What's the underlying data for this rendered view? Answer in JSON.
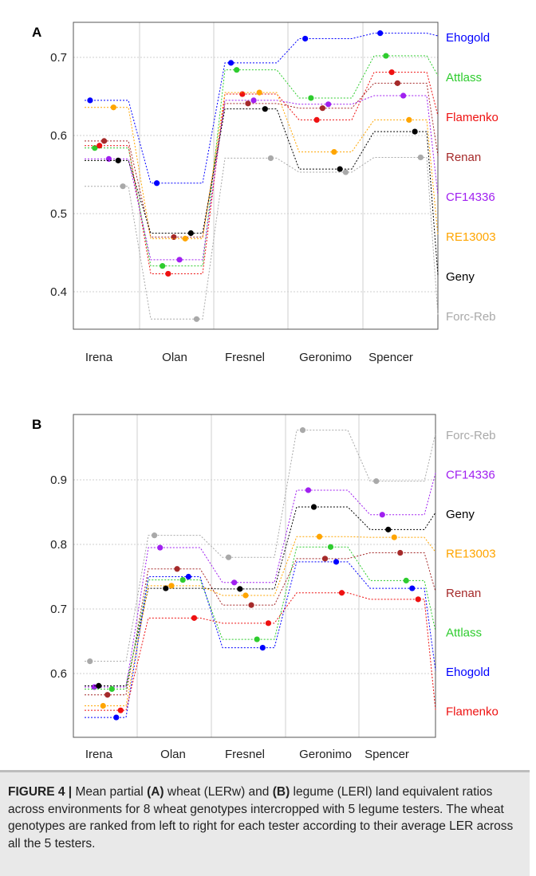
{
  "chart_data": [
    {
      "panel_label": "A",
      "type": "line",
      "categories": [
        "Irena",
        "Olan",
        "Fresnel",
        "Geronimo",
        "Spencer"
      ],
      "yticks": [
        "0.4",
        "0.5",
        "0.6",
        "0.7"
      ],
      "ylim": [
        0.365,
        0.735
      ],
      "grid": true,
      "legend_placement": "right",
      "series": [
        {
          "name": "Ehogold",
          "color": "#0000ff",
          "values": [
            0.645,
            0.539,
            0.693,
            0.724,
            0.731
          ]
        },
        {
          "name": "Attlass",
          "color": "#2ecc2e",
          "values": [
            0.584,
            0.433,
            0.684,
            0.648,
            0.702
          ]
        },
        {
          "name": "Flamenko",
          "color": "#ee1111",
          "values": [
            0.587,
            0.423,
            0.653,
            0.62,
            0.681
          ]
        },
        {
          "name": "Renan",
          "color": "#a52a2a",
          "values": [
            0.593,
            0.47,
            0.641,
            0.635,
            0.667
          ]
        },
        {
          "name": "CF14336",
          "color": "#a020f0",
          "values": [
            0.57,
            0.441,
            0.645,
            0.64,
            0.651
          ]
        },
        {
          "name": "RE13003",
          "color": "#ffa500",
          "values": [
            0.636,
            0.468,
            0.655,
            0.579,
            0.62
          ]
        },
        {
          "name": "Geny",
          "color": "#000000",
          "values": [
            0.568,
            0.475,
            0.634,
            0.557,
            0.605
          ]
        },
        {
          "name": "Forc-Reb",
          "color": "#a9a9a9",
          "values": [
            0.535,
            0.365,
            0.571,
            0.553,
            0.572
          ]
        }
      ]
    },
    {
      "panel_label": "B",
      "type": "line",
      "categories": [
        "Irena",
        "Olan",
        "Fresnel",
        "Geronimo",
        "Spencer"
      ],
      "yticks": [
        "0.6",
        "0.7",
        "0.8",
        "0.9"
      ],
      "ylim": [
        0.525,
        0.99
      ],
      "grid": true,
      "legend_placement": "right",
      "series": [
        {
          "name": "Forc-Reb",
          "color": "#a9a9a9",
          "values": [
            0.619,
            0.814,
            0.78,
            0.977,
            0.898
          ]
        },
        {
          "name": "CF14336",
          "color": "#a020f0",
          "values": [
            0.579,
            0.795,
            0.741,
            0.884,
            0.846
          ]
        },
        {
          "name": "Geny",
          "color": "#000000",
          "values": [
            0.581,
            0.732,
            0.731,
            0.858,
            0.823
          ]
        },
        {
          "name": "RE13003",
          "color": "#ffa500",
          "values": [
            0.55,
            0.736,
            0.721,
            0.812,
            0.811
          ]
        },
        {
          "name": "Renan",
          "color": "#a52a2a",
          "values": [
            0.567,
            0.762,
            0.706,
            0.778,
            0.787
          ]
        },
        {
          "name": "Attlass",
          "color": "#2ecc2e",
          "values": [
            0.576,
            0.745,
            0.653,
            0.796,
            0.744
          ]
        },
        {
          "name": "Ehogold",
          "color": "#0000ff",
          "values": [
            0.532,
            0.75,
            0.64,
            0.773,
            0.732
          ]
        },
        {
          "name": "Flamenko",
          "color": "#ee1111",
          "values": [
            0.543,
            0.686,
            0.678,
            0.725,
            0.715
          ]
        }
      ]
    }
  ],
  "caption": {
    "label": "FIGURE 4 |",
    "text_1": " Mean partial ",
    "bold_a": "(A)",
    "text_2": " wheat (LERw) and ",
    "bold_b": "(B)",
    "text_3": " legume (LERl) land equivalent ratios across environments for 8 wheat genotypes intercropped with 5 legume testers. The wheat genotypes are ranked from left to right for each tester according to their average LER across all the 5 testers."
  }
}
